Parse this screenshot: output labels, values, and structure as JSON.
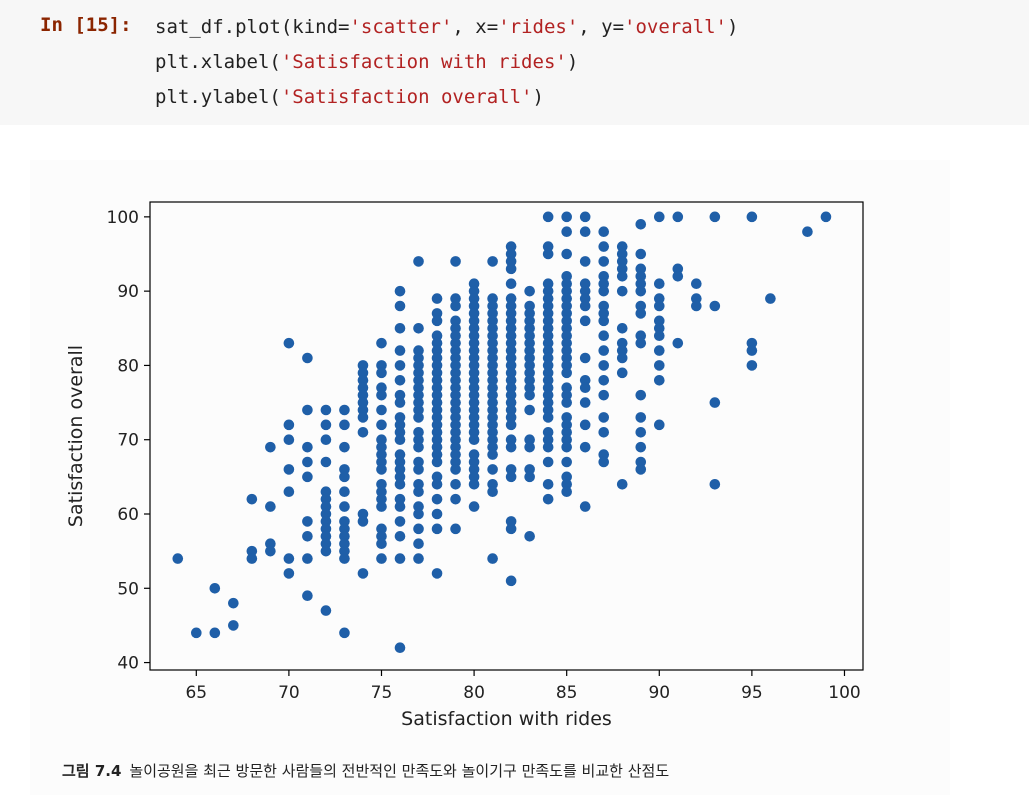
{
  "cell": {
    "prompt": "In [15]:",
    "code_lines": [
      [
        {
          "t": "sat_df.plot(kind="
        },
        {
          "t": "'scatter'",
          "s": true
        },
        {
          "t": ", x="
        },
        {
          "t": "'rides'",
          "s": true
        },
        {
          "t": ", y="
        },
        {
          "t": "'overall'",
          "s": true
        },
        {
          "t": ")"
        }
      ],
      [
        {
          "t": "plt.xlabel("
        },
        {
          "t": "'Satisfaction with rides'",
          "s": true
        },
        {
          "t": ")"
        }
      ],
      [
        {
          "t": "plt.ylabel("
        },
        {
          "t": "'Satisfaction overall'",
          "s": true
        },
        {
          "t": ")"
        }
      ]
    ]
  },
  "caption": {
    "figure_number": "그림 7.4",
    "text": "놀이공원을 최근 방문한 사람들의 전반적인 만족도와 놀이기구 만족도를 비교한 산점도"
  },
  "colors": {
    "marker": "#1f5fa8",
    "axis": "#000000",
    "prompt": "#8b2500",
    "string": "#b22222"
  },
  "chart_data": {
    "type": "scatter",
    "title": "",
    "xlabel": "Satisfaction with rides",
    "ylabel": "Satisfaction overall",
    "xlim": [
      62.5,
      101
    ],
    "ylim": [
      39,
      102
    ],
    "xticks": [
      65,
      70,
      75,
      80,
      85,
      90,
      95,
      100
    ],
    "yticks": [
      40,
      50,
      60,
      70,
      80,
      90,
      100
    ],
    "grid": false,
    "points": [
      [
        64,
        54
      ],
      [
        65,
        44
      ],
      [
        66,
        50
      ],
      [
        66,
        44
      ],
      [
        67,
        48
      ],
      [
        67,
        45
      ],
      [
        68,
        62
      ],
      [
        68,
        55
      ],
      [
        68,
        54
      ],
      [
        69,
        69
      ],
      [
        69,
        61
      ],
      [
        69,
        56
      ],
      [
        69,
        55
      ],
      [
        70,
        83
      ],
      [
        70,
        72
      ],
      [
        70,
        70
      ],
      [
        70,
        66
      ],
      [
        70,
        63
      ],
      [
        70,
        54
      ],
      [
        70,
        52
      ],
      [
        71,
        81
      ],
      [
        71,
        74
      ],
      [
        71,
        69
      ],
      [
        71,
        67
      ],
      [
        71,
        65
      ],
      [
        71,
        59
      ],
      [
        71,
        57
      ],
      [
        71,
        54
      ],
      [
        71,
        49
      ],
      [
        72,
        74
      ],
      [
        72,
        72
      ],
      [
        72,
        70
      ],
      [
        72,
        67
      ],
      [
        72,
        63
      ],
      [
        72,
        62
      ],
      [
        72,
        61
      ],
      [
        72,
        60
      ],
      [
        72,
        59
      ],
      [
        72,
        58
      ],
      [
        72,
        57
      ],
      [
        72,
        56
      ],
      [
        72,
        55
      ],
      [
        72,
        47
      ],
      [
        73,
        74
      ],
      [
        73,
        72
      ],
      [
        73,
        69
      ],
      [
        73,
        66
      ],
      [
        73,
        65
      ],
      [
        73,
        63
      ],
      [
        73,
        61
      ],
      [
        73,
        59
      ],
      [
        73,
        58
      ],
      [
        73,
        57
      ],
      [
        73,
        56
      ],
      [
        73,
        55
      ],
      [
        73,
        54
      ],
      [
        73,
        44
      ],
      [
        74,
        80
      ],
      [
        74,
        79
      ],
      [
        74,
        78
      ],
      [
        74,
        77
      ],
      [
        74,
        76
      ],
      [
        74,
        75
      ],
      [
        74,
        74
      ],
      [
        74,
        73
      ],
      [
        74,
        71
      ],
      [
        74,
        60
      ],
      [
        74,
        59
      ],
      [
        74,
        52
      ],
      [
        75,
        83
      ],
      [
        75,
        80
      ],
      [
        75,
        79
      ],
      [
        75,
        77
      ],
      [
        75,
        76
      ],
      [
        75,
        74
      ],
      [
        75,
        72
      ],
      [
        75,
        70
      ],
      [
        75,
        69
      ],
      [
        75,
        68
      ],
      [
        75,
        67
      ],
      [
        75,
        66
      ],
      [
        75,
        64
      ],
      [
        75,
        63
      ],
      [
        75,
        62
      ],
      [
        75,
        61
      ],
      [
        75,
        58
      ],
      [
        75,
        57
      ],
      [
        75,
        56
      ],
      [
        75,
        54
      ],
      [
        76,
        90
      ],
      [
        76,
        88
      ],
      [
        76,
        85
      ],
      [
        76,
        82
      ],
      [
        76,
        80
      ],
      [
        76,
        78
      ],
      [
        76,
        76
      ],
      [
        76,
        75
      ],
      [
        76,
        73
      ],
      [
        76,
        72
      ],
      [
        76,
        71
      ],
      [
        76,
        70
      ],
      [
        76,
        68
      ],
      [
        76,
        67
      ],
      [
        76,
        66
      ],
      [
        76,
        65
      ],
      [
        76,
        64
      ],
      [
        76,
        62
      ],
      [
        76,
        61
      ],
      [
        76,
        59
      ],
      [
        76,
        57
      ],
      [
        76,
        54
      ],
      [
        76,
        42
      ],
      [
        77,
        94
      ],
      [
        77,
        85
      ],
      [
        77,
        82
      ],
      [
        77,
        81
      ],
      [
        77,
        80
      ],
      [
        77,
        79
      ],
      [
        77,
        78
      ],
      [
        77,
        77
      ],
      [
        77,
        76
      ],
      [
        77,
        75
      ],
      [
        77,
        74
      ],
      [
        77,
        73
      ],
      [
        77,
        71
      ],
      [
        77,
        70
      ],
      [
        77,
        69
      ],
      [
        77,
        67
      ],
      [
        77,
        66
      ],
      [
        77,
        64
      ],
      [
        77,
        63
      ],
      [
        77,
        61
      ],
      [
        77,
        60
      ],
      [
        77,
        58
      ],
      [
        77,
        56
      ],
      [
        77,
        54
      ],
      [
        78,
        89
      ],
      [
        78,
        87
      ],
      [
        78,
        86
      ],
      [
        78,
        84
      ],
      [
        78,
        83
      ],
      [
        78,
        82
      ],
      [
        78,
        81
      ],
      [
        78,
        80
      ],
      [
        78,
        79
      ],
      [
        78,
        78
      ],
      [
        78,
        77
      ],
      [
        78,
        76
      ],
      [
        78,
        75
      ],
      [
        78,
        74
      ],
      [
        78,
        73
      ],
      [
        78,
        72
      ],
      [
        78,
        71
      ],
      [
        78,
        70
      ],
      [
        78,
        69
      ],
      [
        78,
        68
      ],
      [
        78,
        67
      ],
      [
        78,
        65
      ],
      [
        78,
        64
      ],
      [
        78,
        62
      ],
      [
        78,
        60
      ],
      [
        78,
        58
      ],
      [
        78,
        52
      ],
      [
        79,
        94
      ],
      [
        79,
        89
      ],
      [
        79,
        88
      ],
      [
        79,
        86
      ],
      [
        79,
        85
      ],
      [
        79,
        84
      ],
      [
        79,
        83
      ],
      [
        79,
        82
      ],
      [
        79,
        81
      ],
      [
        79,
        80
      ],
      [
        79,
        79
      ],
      [
        79,
        78
      ],
      [
        79,
        77
      ],
      [
        79,
        76
      ],
      [
        79,
        75
      ],
      [
        79,
        74
      ],
      [
        79,
        73
      ],
      [
        79,
        72
      ],
      [
        79,
        71
      ],
      [
        79,
        70
      ],
      [
        79,
        69
      ],
      [
        79,
        68
      ],
      [
        79,
        67
      ],
      [
        79,
        66
      ],
      [
        79,
        64
      ],
      [
        79,
        62
      ],
      [
        79,
        58
      ],
      [
        80,
        91
      ],
      [
        80,
        90
      ],
      [
        80,
        89
      ],
      [
        80,
        88
      ],
      [
        80,
        87
      ],
      [
        80,
        86
      ],
      [
        80,
        85
      ],
      [
        80,
        84
      ],
      [
        80,
        83
      ],
      [
        80,
        82
      ],
      [
        80,
        81
      ],
      [
        80,
        80
      ],
      [
        80,
        79
      ],
      [
        80,
        78
      ],
      [
        80,
        77
      ],
      [
        80,
        76
      ],
      [
        80,
        75
      ],
      [
        80,
        74
      ],
      [
        80,
        73
      ],
      [
        80,
        72
      ],
      [
        80,
        71
      ],
      [
        80,
        70
      ],
      [
        80,
        68
      ],
      [
        80,
        67
      ],
      [
        80,
        66
      ],
      [
        80,
        65
      ],
      [
        80,
        64
      ],
      [
        80,
        61
      ],
      [
        81,
        94
      ],
      [
        81,
        89
      ],
      [
        81,
        88
      ],
      [
        81,
        87
      ],
      [
        81,
        86
      ],
      [
        81,
        85
      ],
      [
        81,
        84
      ],
      [
        81,
        83
      ],
      [
        81,
        82
      ],
      [
        81,
        81
      ],
      [
        81,
        80
      ],
      [
        81,
        79
      ],
      [
        81,
        78
      ],
      [
        81,
        77
      ],
      [
        81,
        76
      ],
      [
        81,
        75
      ],
      [
        81,
        74
      ],
      [
        81,
        73
      ],
      [
        81,
        72
      ],
      [
        81,
        71
      ],
      [
        81,
        70
      ],
      [
        81,
        69
      ],
      [
        81,
        68
      ],
      [
        81,
        66
      ],
      [
        81,
        64
      ],
      [
        81,
        63
      ],
      [
        81,
        54
      ],
      [
        82,
        96
      ],
      [
        82,
        95
      ],
      [
        82,
        94
      ],
      [
        82,
        93
      ],
      [
        82,
        91
      ],
      [
        82,
        89
      ],
      [
        82,
        88
      ],
      [
        82,
        87
      ],
      [
        82,
        86
      ],
      [
        82,
        85
      ],
      [
        82,
        84
      ],
      [
        82,
        83
      ],
      [
        82,
        82
      ],
      [
        82,
        81
      ],
      [
        82,
        80
      ],
      [
        82,
        79
      ],
      [
        82,
        78
      ],
      [
        82,
        77
      ],
      [
        82,
        76
      ],
      [
        82,
        75
      ],
      [
        82,
        74
      ],
      [
        82,
        73
      ],
      [
        82,
        72
      ],
      [
        82,
        70
      ],
      [
        82,
        69
      ],
      [
        82,
        66
      ],
      [
        82,
        65
      ],
      [
        82,
        59
      ],
      [
        82,
        58
      ],
      [
        82,
        51
      ],
      [
        83,
        90
      ],
      [
        83,
        88
      ],
      [
        83,
        87
      ],
      [
        83,
        86
      ],
      [
        83,
        85
      ],
      [
        83,
        84
      ],
      [
        83,
        83
      ],
      [
        83,
        82
      ],
      [
        83,
        81
      ],
      [
        83,
        80
      ],
      [
        83,
        79
      ],
      [
        83,
        78
      ],
      [
        83,
        77
      ],
      [
        83,
        76
      ],
      [
        83,
        74
      ],
      [
        83,
        70
      ],
      [
        83,
        69
      ],
      [
        83,
        66
      ],
      [
        83,
        65
      ],
      [
        83,
        57
      ],
      [
        84,
        100
      ],
      [
        84,
        96
      ],
      [
        84,
        95
      ],
      [
        84,
        91
      ],
      [
        84,
        90
      ],
      [
        84,
        89
      ],
      [
        84,
        88
      ],
      [
        84,
        87
      ],
      [
        84,
        86
      ],
      [
        84,
        85
      ],
      [
        84,
        84
      ],
      [
        84,
        83
      ],
      [
        84,
        82
      ],
      [
        84,
        81
      ],
      [
        84,
        80
      ],
      [
        84,
        79
      ],
      [
        84,
        78
      ],
      [
        84,
        77
      ],
      [
        84,
        76
      ],
      [
        84,
        75
      ],
      [
        84,
        74
      ],
      [
        84,
        73
      ],
      [
        84,
        71
      ],
      [
        84,
        70
      ],
      [
        84,
        69
      ],
      [
        84,
        67
      ],
      [
        84,
        64
      ],
      [
        84,
        62
      ],
      [
        85,
        100
      ],
      [
        85,
        98
      ],
      [
        85,
        95
      ],
      [
        85,
        92
      ],
      [
        85,
        91
      ],
      [
        85,
        90
      ],
      [
        85,
        89
      ],
      [
        85,
        88
      ],
      [
        85,
        87
      ],
      [
        85,
        86
      ],
      [
        85,
        85
      ],
      [
        85,
        84
      ],
      [
        85,
        83
      ],
      [
        85,
        82
      ],
      [
        85,
        81
      ],
      [
        85,
        80
      ],
      [
        85,
        79
      ],
      [
        85,
        77
      ],
      [
        85,
        76
      ],
      [
        85,
        75
      ],
      [
        85,
        73
      ],
      [
        85,
        72
      ],
      [
        85,
        71
      ],
      [
        85,
        70
      ],
      [
        85,
        69
      ],
      [
        85,
        67
      ],
      [
        85,
        65
      ],
      [
        85,
        64
      ],
      [
        85,
        63
      ],
      [
        86,
        100
      ],
      [
        86,
        98
      ],
      [
        86,
        94
      ],
      [
        86,
        91
      ],
      [
        86,
        90
      ],
      [
        86,
        89
      ],
      [
        86,
        88
      ],
      [
        86,
        86
      ],
      [
        86,
        81
      ],
      [
        86,
        78
      ],
      [
        86,
        77
      ],
      [
        86,
        75
      ],
      [
        86,
        72
      ],
      [
        86,
        69
      ],
      [
        86,
        61
      ],
      [
        87,
        98
      ],
      [
        87,
        96
      ],
      [
        87,
        94
      ],
      [
        87,
        92
      ],
      [
        87,
        91
      ],
      [
        87,
        90
      ],
      [
        87,
        88
      ],
      [
        87,
        87
      ],
      [
        87,
        86
      ],
      [
        87,
        84
      ],
      [
        87,
        82
      ],
      [
        87,
        80
      ],
      [
        87,
        78
      ],
      [
        87,
        76
      ],
      [
        87,
        73
      ],
      [
        87,
        71
      ],
      [
        87,
        68
      ],
      [
        87,
        67
      ],
      [
        88,
        96
      ],
      [
        88,
        95
      ],
      [
        88,
        94
      ],
      [
        88,
        93
      ],
      [
        88,
        92
      ],
      [
        88,
        90
      ],
      [
        88,
        85
      ],
      [
        88,
        83
      ],
      [
        88,
        82
      ],
      [
        88,
        81
      ],
      [
        88,
        79
      ],
      [
        88,
        64
      ],
      [
        89,
        99
      ],
      [
        89,
        95
      ],
      [
        89,
        93
      ],
      [
        89,
        92
      ],
      [
        89,
        91
      ],
      [
        89,
        90
      ],
      [
        89,
        88
      ],
      [
        89,
        87
      ],
      [
        89,
        84
      ],
      [
        89,
        83
      ],
      [
        89,
        76
      ],
      [
        89,
        73
      ],
      [
        89,
        71
      ],
      [
        89,
        69
      ],
      [
        89,
        67
      ],
      [
        89,
        66
      ],
      [
        90,
        100
      ],
      [
        90,
        91
      ],
      [
        90,
        89
      ],
      [
        90,
        88
      ],
      [
        90,
        86
      ],
      [
        90,
        85
      ],
      [
        90,
        84
      ],
      [
        90,
        82
      ],
      [
        90,
        80
      ],
      [
        90,
        78
      ],
      [
        90,
        72
      ],
      [
        91,
        100
      ],
      [
        91,
        93
      ],
      [
        91,
        92
      ],
      [
        91,
        83
      ],
      [
        92,
        91
      ],
      [
        92,
        89
      ],
      [
        92,
        88
      ],
      [
        93,
        100
      ],
      [
        93,
        88
      ],
      [
        93,
        75
      ],
      [
        93,
        64
      ],
      [
        95,
        100
      ],
      [
        95,
        83
      ],
      [
        95,
        82
      ],
      [
        95,
        80
      ],
      [
        96,
        89
      ],
      [
        98,
        98
      ],
      [
        99,
        100
      ]
    ]
  }
}
